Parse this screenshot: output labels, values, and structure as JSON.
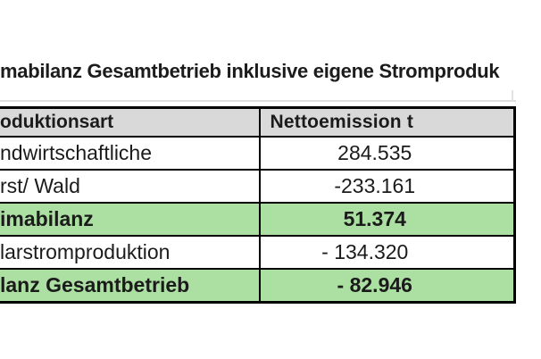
{
  "title": "mabilanz Gesamtbetrieb inklusive eigene Stromproduk",
  "colors": {
    "header_bg": "#d9d9d9",
    "highlight_green": "#ace0a2",
    "border": "#000000",
    "text": "#1b1b1b"
  },
  "table": {
    "columns": [
      {
        "label": "oduktionsart"
      },
      {
        "label": "Nettoemission t"
      }
    ],
    "rows": [
      {
        "label": "ndwirtschaftliche",
        "value": "284.535",
        "highlight": false,
        "bold": false,
        "value_shift": false
      },
      {
        "label": "rst/ Wald",
        "value": "-233.161",
        "highlight": false,
        "bold": false,
        "value_shift": false
      },
      {
        "label": "imabilanz",
        "value": "51.374",
        "highlight": true,
        "bold": true,
        "value_shift": false
      },
      {
        "label": "larstromproduktion",
        "value": "- 134.320",
        "highlight": false,
        "bold": false,
        "value_shift": true
      },
      {
        "label": "lanz Gesamtbetrieb",
        "value": "- 82.946",
        "highlight": true,
        "bold": true,
        "value_shift": false
      }
    ]
  }
}
